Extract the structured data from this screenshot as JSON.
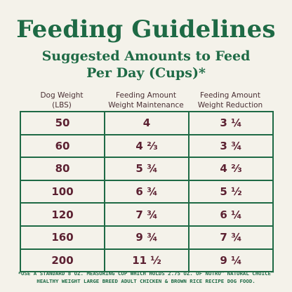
{
  "title": "Feeding Guidelines",
  "subtitle": {
    "line1": "Suggested Amounts to Feed",
    "line2": "Per Day (Cups)*"
  },
  "columns": [
    {
      "line1": "Dog Weight",
      "line2": "(LBS)"
    },
    {
      "line1": "Feeding Amount",
      "line2": "Weight Maintenance"
    },
    {
      "line1": "Feeding Amount",
      "line2": "Weight Reduction"
    }
  ],
  "rows": [
    [
      "50",
      "4",
      "3 ¼"
    ],
    [
      "60",
      "4 ⅔",
      "3 ¾"
    ],
    [
      "80",
      "5 ¾",
      "4 ⅔"
    ],
    [
      "100",
      "6 ¾",
      "5 ½"
    ],
    [
      "120",
      "7 ¾",
      "6 ¼"
    ],
    [
      "160",
      "9 ¾",
      "7 ¾"
    ],
    [
      "200",
      "11 ½",
      "9 ¼"
    ]
  ],
  "footnote": "*USE A STANDARD 8 OZ. MEASURING CUP WHICH HOLDS 2.75 OZ. OF NUTRO™ NATURAL CHOICE™ HEALTHY WEIGHT LARGE BREED ADULT CHICKEN & BROWN RICE RECIPE DOG FOOD.",
  "colors": {
    "background": "#f4f2ea",
    "green": "#1e6a45",
    "maroon": "#5c2132"
  }
}
